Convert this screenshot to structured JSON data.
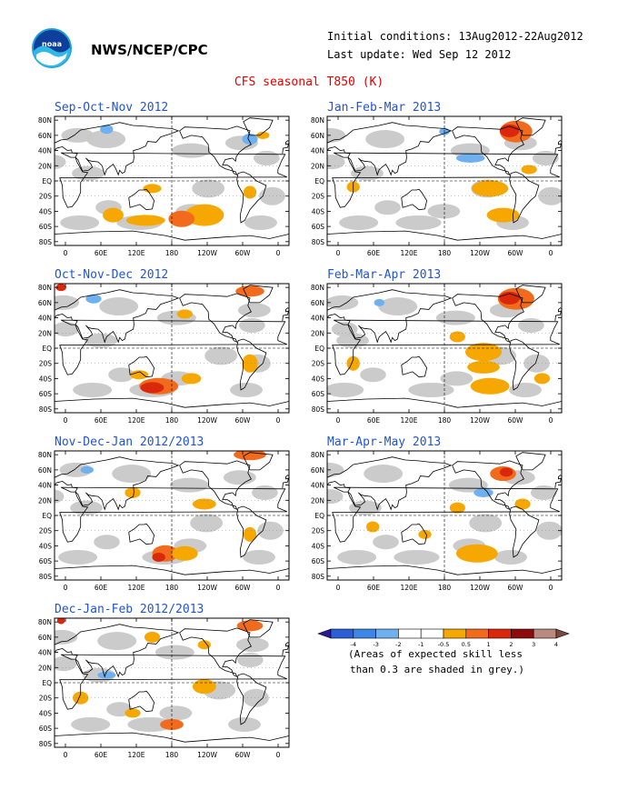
{
  "header": {
    "org": "NWS/NCEP/CPC",
    "initial_conditions": "Initial conditions: 13Aug2012-22Aug2012",
    "last_update": "Last update: Wed Sep 12 2012",
    "title": "CFS seasonal T850 (K)",
    "logo_icon": "noaa-logo-icon"
  },
  "map_axes": {
    "lat_labels": [
      "80N",
      "60N",
      "40N",
      "20N",
      "EQ",
      "20S",
      "40S",
      "60S",
      "80S"
    ],
    "lon_labels": [
      "0",
      "60E",
      "120E",
      "180",
      "120W",
      "60W",
      "0"
    ]
  },
  "panels": [
    {
      "title": "Sep-Oct-Nov 2012"
    },
    {
      "title": "Jan-Feb-Mar 2013"
    },
    {
      "title": "Oct-Nov-Dec 2012"
    },
    {
      "title": "Feb-Mar-Apr 2013"
    },
    {
      "title": "Nov-Dec-Jan 2012/2013"
    },
    {
      "title": "Mar-Apr-May 2013"
    },
    {
      "title": "Dec-Jan-Feb 2012/2013"
    }
  ],
  "legend": {
    "labels": [
      "-4",
      "-3",
      "-2",
      "-1",
      "-0.5",
      "0.5",
      "1",
      "2",
      "3",
      "4"
    ],
    "colors": [
      "#2a1a9a",
      "#2b5fd8",
      "#3d86e6",
      "#6fb1f0",
      "#ffffff",
      "#ffffff",
      "#f6a800",
      "#f26b1c",
      "#d9280c",
      "#8c0b0b",
      "#b88a80",
      "#7a4a40"
    ],
    "note_line1": "(Areas of expected skill less",
    "note_line2": "than 0.3 are shaded in grey.)"
  },
  "colors": {
    "grey_low_skill": "#c8c8c8",
    "warm_1": "#f6a800",
    "warm_2": "#f26b1c",
    "warm_3": "#d9280c",
    "cool_1": "#6fb1f0",
    "cool_2": "#3d86e6",
    "title_red": "#e00000",
    "panel_title_blue": "#2255cc"
  }
}
